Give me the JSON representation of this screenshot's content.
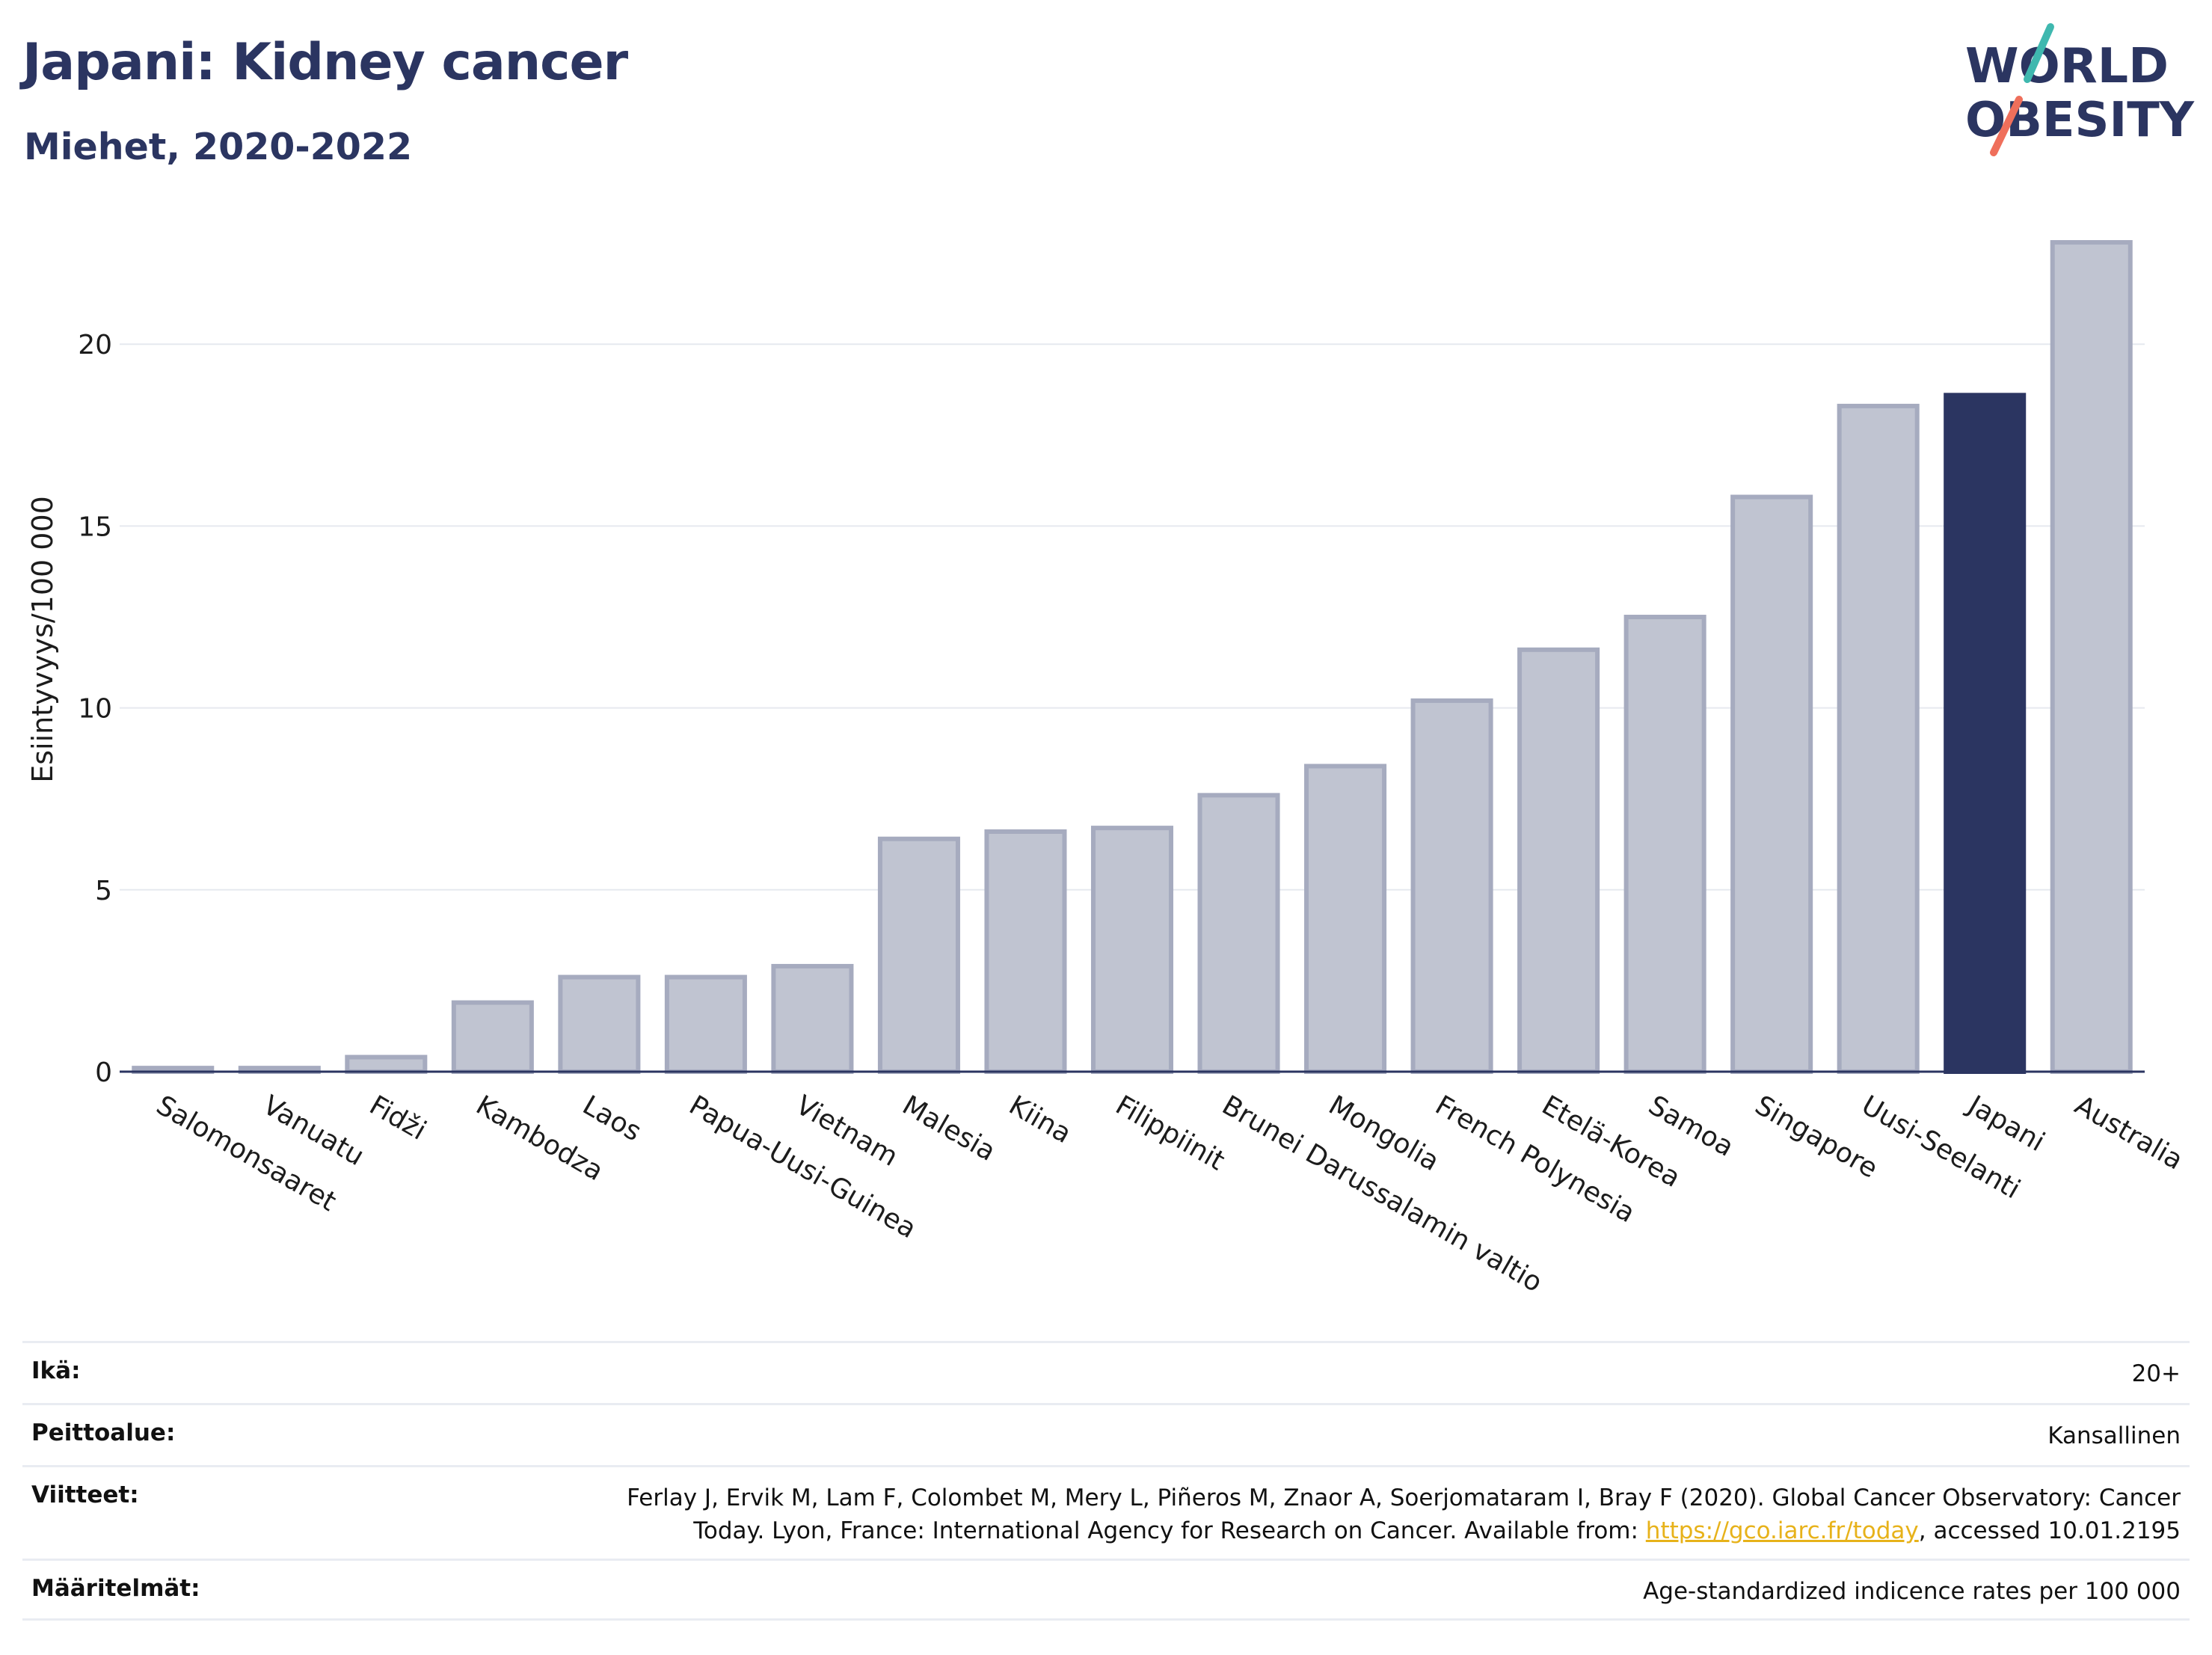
{
  "header": {
    "title": "Japani: Kidney cancer",
    "subtitle": "Miehet, 2020-2022"
  },
  "logo": {
    "line1": "WORLD",
    "line2": "OBESITY",
    "colors": {
      "text": "#2b3561",
      "slash_top": "#3fb8af",
      "slash_bottom": "#ef6f5b"
    }
  },
  "chart_data": {
    "type": "bar",
    "ylabel": "Esiintyvyys/100 000",
    "xlabel": "",
    "ylim": [
      0,
      23.5
    ],
    "yticks": [
      0,
      5,
      10,
      15,
      20
    ],
    "grid": true,
    "categories": [
      "Salomonsaaret",
      "Vanuatu",
      "Fidži",
      "Kambodza",
      "Laos",
      "Papua-Uusi-Guinea",
      "Vietnam",
      "Malesia",
      "Kiina",
      "Filippiinit",
      "Brunei Darussalamin valtio",
      "Mongolia",
      "French Polynesia",
      "Etelä-Korea",
      "Samoa",
      "Singapore",
      "Uusi-Seelanti",
      "Japani",
      "Australia"
    ],
    "values": [
      0.1,
      0.1,
      0.4,
      1.9,
      2.6,
      2.6,
      2.9,
      6.4,
      6.6,
      6.7,
      7.6,
      8.4,
      10.2,
      11.6,
      12.5,
      15.8,
      18.3,
      18.6,
      22.8
    ],
    "highlight": "Japani",
    "colors": {
      "bar": "#c0c4d1",
      "bar_edge": "#a6abbf",
      "highlight": "#2b3561",
      "axis": "#2b3561",
      "grid": "#e6e9ef"
    }
  },
  "meta": {
    "age_label": "Ikä:",
    "age_value": "20+",
    "coverage_label": "Peittoalue:",
    "coverage_value": "Kansallinen",
    "refs_label": "Viitteet:",
    "refs_text_1": "Ferlay J, Ervik M, Lam F, Colombet M, Mery L, Piñeros M, Znaor A, Soerjomataram I, Bray F (2020). Global Cancer Observatory: Cancer",
    "refs_text_2": "Today. Lyon, France: International Agency for Research on Cancer. Available from: ",
    "refs_link": "https://gco.iarc.fr/today",
    "refs_text_3": ", accessed 10.01.2195",
    "defs_label": "Määritelmät:",
    "defs_value": "Age-standardized indicence rates per 100 000"
  }
}
